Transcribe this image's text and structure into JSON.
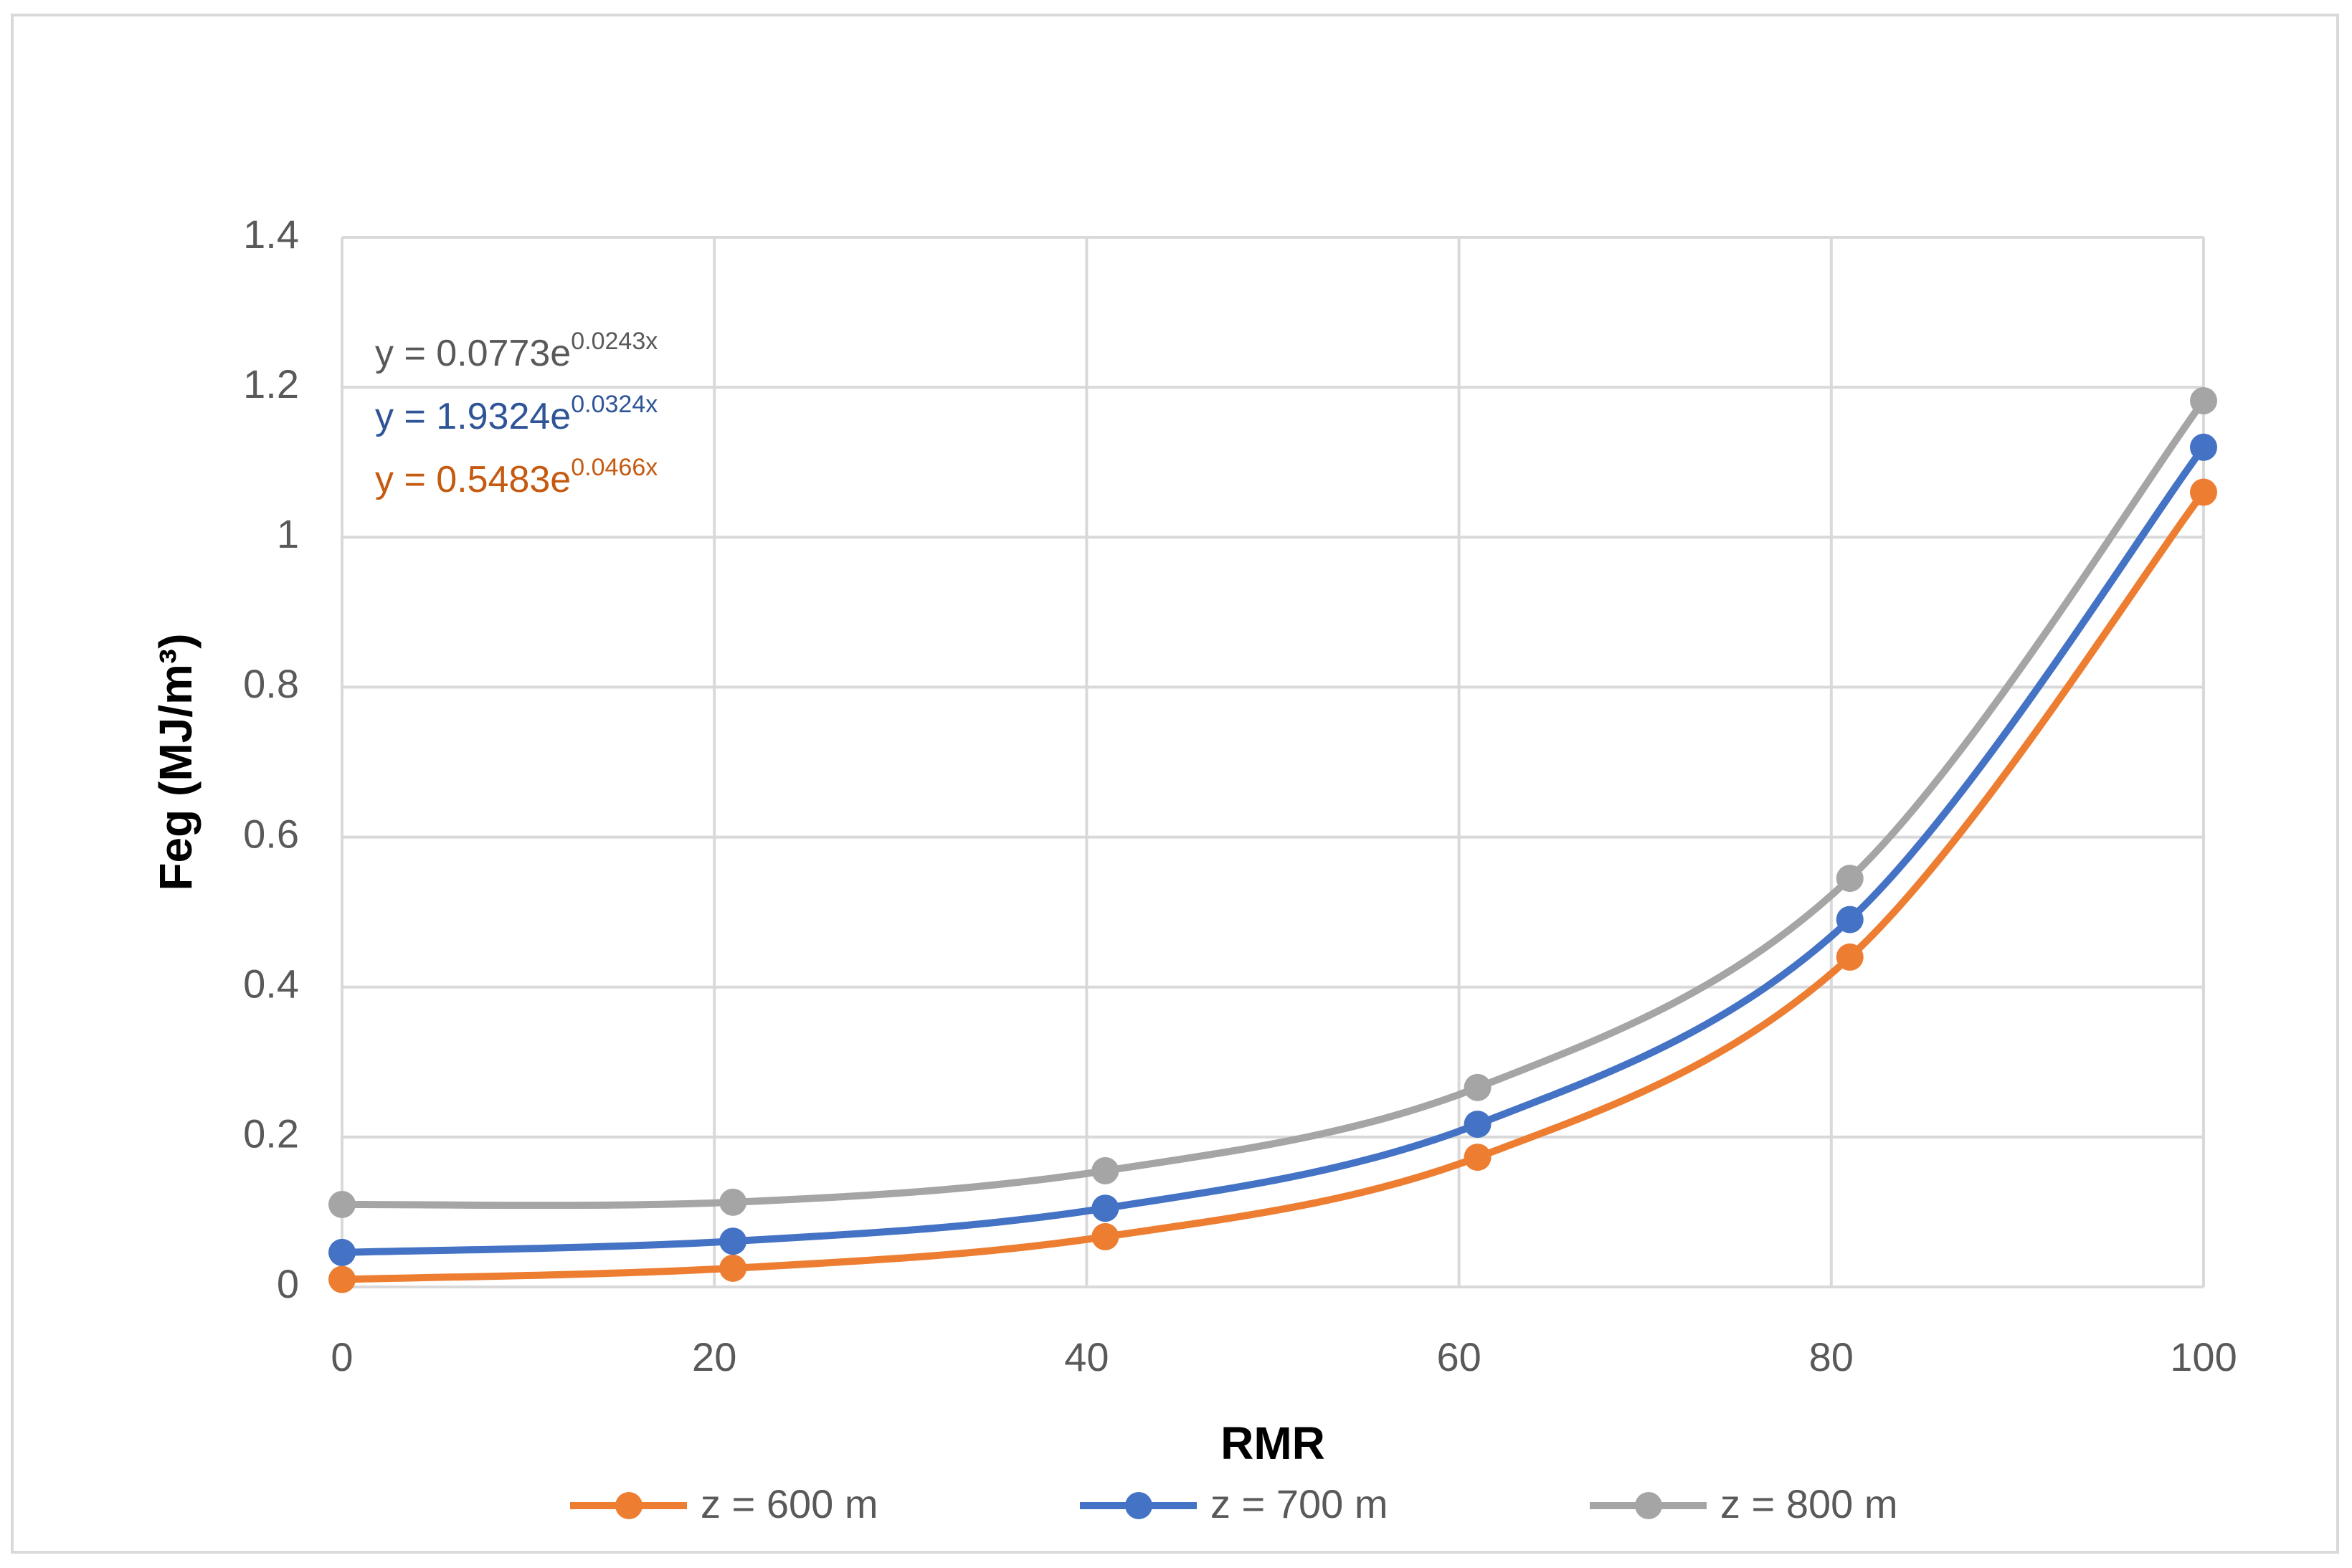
{
  "chart_data": {
    "type": "line",
    "x_label": "RMR",
    "y_label": "Feg (MJ/m³)",
    "x": [
      0,
      21,
      41,
      61,
      81,
      100
    ],
    "series": [
      {
        "name": "z = 600 m",
        "color": "#ed7d31",
        "values": [
          0.01,
          0.025,
          0.067,
          0.173,
          0.44,
          1.06
        ]
      },
      {
        "name": "z = 700 m",
        "color": "#4472c4",
        "values": [
          0.046,
          0.061,
          0.105,
          0.217,
          0.49,
          1.12
        ]
      },
      {
        "name": "z = 800 m",
        "color": "#a5a5a5",
        "values": [
          0.11,
          0.113,
          0.155,
          0.266,
          0.545,
          1.182
        ]
      }
    ],
    "xlim": [
      0,
      100
    ],
    "xticks": [
      0,
      20,
      40,
      60,
      80,
      100
    ],
    "ylim": [
      0,
      1.4
    ],
    "yticks": [
      0,
      0.2,
      0.4,
      0.6,
      0.8,
      1,
      1.2,
      1.4
    ],
    "grid": true,
    "smooth": true,
    "legend": "bottom",
    "annotations": [
      {
        "text": "y = 0.0773e",
        "exponent": "0.0243x",
        "color": "#595959"
      },
      {
        "text": "y = 1.9324e",
        "exponent": "0.0324x",
        "color": "#2f5597"
      },
      {
        "text": "y = 0.5483e",
        "exponent": "0.0466x",
        "color": "#c55a11"
      }
    ]
  }
}
